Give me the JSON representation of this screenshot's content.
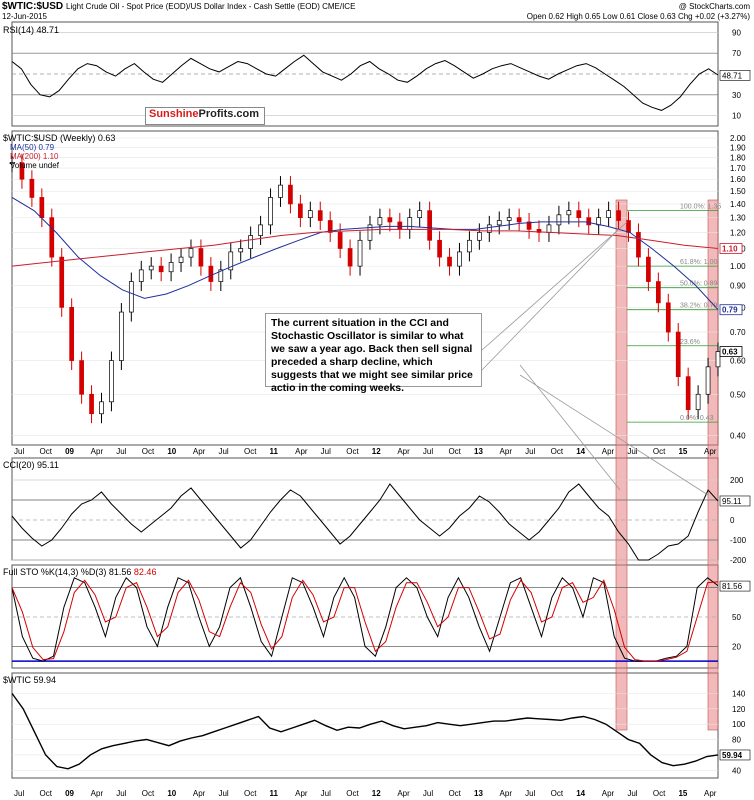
{
  "header": {
    "title": "$WTIC:$USD",
    "subtitle": "Light Crude Oil - Spot Price (EOD)/US Dollar Index - Cash Settle (EOD)  CME/ICE",
    "watermark": "@ StockCharts.com",
    "date": "12-Jun-2015",
    "quote": "Open 0.62  High 0.65  Low 0.61  Close 0.63  Chg +0.02 (+3.27%)"
  },
  "brand": {
    "part1": "Sunshine",
    "part2": "Profits.com"
  },
  "callout": {
    "text": "The current situation in the CCI and Stochastic Oscillator is similar to what we saw a year ago. Back then sell signal preceded a sharp decline, which suggests that we might see similar price actio in the coming weeks."
  },
  "legend": {
    "main": "$WTIC:$USD (Weekly) 0.63",
    "ma50": "MA(50) 0.79",
    "ma200": "MA(200) 1.10",
    "volume": "Volume undef"
  },
  "colors": {
    "price_up": "#000000",
    "price_down": "#d40000",
    "ma50": "#1f2f9a",
    "ma200": "#c81e2e",
    "fib": "#2e9b2e",
    "highlight": "#e58080",
    "osc_fill_up": "#4f7a4f",
    "osc_fill_down": "#8e5a55",
    "sto_d": "#d40000",
    "blue_line": "#0000cc"
  },
  "chart_data": [
    {
      "type": "line",
      "title": "RSI(14) 48.71",
      "ylim": [
        0,
        100
      ],
      "yticks": [
        10,
        30,
        50,
        70,
        90
      ],
      "last_value": "48.71",
      "values": [
        62,
        55,
        40,
        30,
        28,
        34,
        45,
        55,
        60,
        58,
        52,
        48,
        55,
        60,
        52,
        45,
        42,
        50,
        58,
        65,
        60,
        55,
        52,
        57,
        62,
        60,
        55,
        50,
        48,
        55,
        62,
        68,
        60,
        52,
        48,
        44,
        50,
        58,
        62,
        55,
        50,
        44,
        42,
        48,
        55,
        60,
        63,
        58,
        52,
        46,
        50,
        55,
        58,
        60,
        56,
        52,
        48,
        45,
        50,
        54,
        58,
        60,
        56,
        50,
        44,
        38,
        30,
        22,
        18,
        15,
        20,
        28,
        40,
        50,
        55,
        49
      ]
    },
    {
      "type": "line",
      "title": "$WTIC:$USD (Weekly) 0.63",
      "scale": "log",
      "ylim": [
        0.38,
        2.0
      ],
      "yticks": [
        "0.40",
        "0.50",
        "0.60",
        "0.70",
        "0.80",
        "0.90",
        "1.00",
        "1.10",
        "1.20",
        "1.30",
        "1.40",
        "1.50",
        "1.60",
        "1.70",
        "1.80",
        "1.90",
        "2.00"
      ],
      "x_ticks": [
        "Jul",
        "Oct",
        "09",
        "Apr",
        "Jul",
        "Oct",
        "10",
        "Apr",
        "Jul",
        "Oct",
        "11",
        "Apr",
        "Jul",
        "Oct",
        "12",
        "Apr",
        "Jul",
        "Oct",
        "13",
        "Apr",
        "Jul",
        "Oct",
        "14",
        "Apr",
        "Jul",
        "Oct",
        "15",
        "Apr"
      ],
      "price_values": [
        1.75,
        1.6,
        1.45,
        1.3,
        1.05,
        0.8,
        0.6,
        0.5,
        0.45,
        0.48,
        0.6,
        0.78,
        0.92,
        0.98,
        1.0,
        0.97,
        1.02,
        1.05,
        1.1,
        1.0,
        0.92,
        0.98,
        1.08,
        1.1,
        1.18,
        1.25,
        1.45,
        1.55,
        1.4,
        1.3,
        1.35,
        1.28,
        1.2,
        1.1,
        1.0,
        1.15,
        1.25,
        1.3,
        1.27,
        1.22,
        1.3,
        1.35,
        1.15,
        1.05,
        1.0,
        1.08,
        1.15,
        1.2,
        1.25,
        1.28,
        1.3,
        1.27,
        1.22,
        1.2,
        1.25,
        1.32,
        1.35,
        1.3,
        1.25,
        1.3,
        1.35,
        1.28,
        1.2,
        1.05,
        0.92,
        0.82,
        0.7,
        0.55,
        0.46,
        0.5,
        0.58,
        0.63
      ],
      "ma50_values": [
        1.45,
        1.35,
        1.2,
        1.05,
        0.95,
        0.88,
        0.84,
        0.86,
        0.9,
        0.95,
        1.0,
        1.05,
        1.1,
        1.15,
        1.2,
        1.22,
        1.23,
        1.24,
        1.24,
        1.23,
        1.22,
        1.22,
        1.24,
        1.26,
        1.27,
        1.27,
        1.27,
        1.24,
        1.2,
        1.1,
        1.0,
        0.9,
        0.79
      ],
      "ma200_values": [
        1.0,
        1.02,
        1.04,
        1.06,
        1.08,
        1.1,
        1.12,
        1.15,
        1.18,
        1.2,
        1.21,
        1.22,
        1.22,
        1.22,
        1.21,
        1.21,
        1.2,
        1.19,
        1.18,
        1.15,
        1.12,
        1.1
      ],
      "ma50_last": "0.79",
      "ma200_last": "1.10",
      "last_value": "0.63",
      "fib_levels": [
        {
          "label": "100.0%: 1.35",
          "value": 1.35
        },
        {
          "label": "61.8%: 1.00",
          "value": 1.0
        },
        {
          "label": "50.0%: 0.89",
          "value": 0.89
        },
        {
          "label": "38.2%: 0.79",
          "value": 0.79
        },
        {
          "label": "23.6%",
          "value": 0.65
        },
        {
          "label": "0.0%: 0.43",
          "value": 0.43
        }
      ]
    },
    {
      "type": "line",
      "title": "CCI(20) 95.11",
      "ylim": [
        -300,
        300
      ],
      "yticks": [
        -200,
        -100,
        0,
        100,
        200
      ],
      "last_value": "95.11",
      "values": [
        20,
        -40,
        -90,
        -130,
        -100,
        -40,
        30,
        80,
        100,
        140,
        80,
        30,
        -20,
        -60,
        -20,
        20,
        60,
        120,
        160,
        100,
        40,
        -20,
        -80,
        -140,
        -100,
        -30,
        40,
        100,
        150,
        120,
        60,
        0,
        -60,
        -120,
        -80,
        -20,
        40,
        100,
        180,
        120,
        60,
        0,
        -40,
        -80,
        -40,
        20,
        60,
        120,
        90,
        40,
        -20,
        -60,
        -100,
        -60,
        0,
        60,
        140,
        180,
        120,
        60,
        20,
        -60,
        -120,
        -200,
        -200,
        -170,
        -130,
        -120,
        -80,
        40,
        150,
        95
      ]
    },
    {
      "type": "line",
      "title": "Full STO %K(14,3) %D(3)",
      "ylim": [
        0,
        100
      ],
      "yticks": [
        20,
        50,
        80
      ],
      "k_last": "81.56",
      "d_last": "82.46",
      "values": [
        80,
        30,
        8,
        5,
        10,
        60,
        90,
        85,
        60,
        30,
        70,
        90,
        80,
        40,
        20,
        60,
        90,
        85,
        50,
        20,
        40,
        80,
        90,
        60,
        25,
        10,
        50,
        90,
        85,
        60,
        30,
        70,
        90,
        70,
        20,
        10,
        40,
        80,
        90,
        80,
        50,
        30,
        70,
        90,
        70,
        40,
        15,
        50,
        85,
        90,
        60,
        30,
        70,
        90,
        80,
        50,
        90,
        85,
        30,
        8,
        5,
        5,
        5,
        8,
        10,
        20,
        80,
        90,
        82
      ]
    },
    {
      "type": "line",
      "title": "$WTIC 59.94",
      "ylim": [
        30,
        160
      ],
      "yticks": [
        40,
        60,
        80,
        100,
        120,
        140
      ],
      "last_value": "59.94",
      "values": [
        140,
        120,
        90,
        60,
        45,
        42,
        48,
        60,
        68,
        72,
        75,
        78,
        80,
        76,
        72,
        78,
        82,
        85,
        90,
        95,
        100,
        105,
        110,
        95,
        90,
        95,
        100,
        105,
        98,
        92,
        96,
        95,
        100,
        104,
        98,
        94,
        96,
        98,
        102,
        100,
        98,
        100,
        102,
        104,
        104,
        106,
        108,
        107,
        106,
        105,
        108,
        110,
        106,
        100,
        90,
        80,
        75,
        60,
        50,
        46,
        48,
        52,
        58,
        60
      ]
    }
  ],
  "highlight_bands": [
    "Jun 2014",
    "Jun 2015"
  ]
}
